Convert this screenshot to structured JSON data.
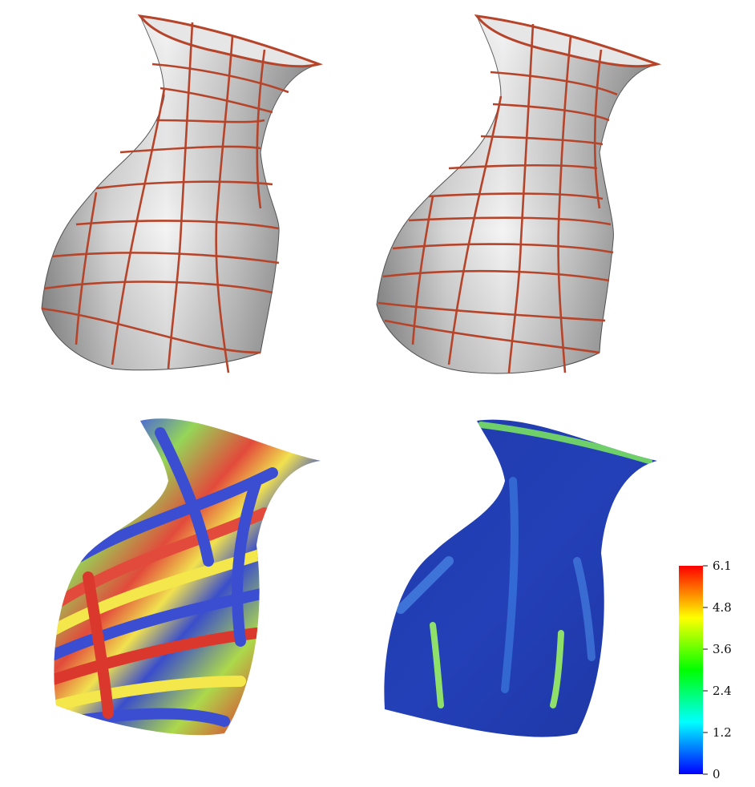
{
  "figure": {
    "panels": [
      {
        "id": "top-left",
        "kind": "shaded-mesh-with-curve-network"
      },
      {
        "id": "top-right",
        "kind": "shaded-mesh-with-curve-network"
      },
      {
        "id": "bottom-left",
        "kind": "color-mapped-error"
      },
      {
        "id": "bottom-right",
        "kind": "color-mapped-error"
      }
    ],
    "curve_color": "#b5442a",
    "shading_color": "#c8c8c8"
  },
  "colorbar": {
    "ticks": [
      "6.1",
      "4.8",
      "3.6",
      "2.4",
      "1.2",
      "0"
    ],
    "min": 0,
    "max": 6.1,
    "colors": [
      "#ff0000",
      "#ffff00",
      "#00ff00",
      "#00ffff",
      "#0000ff"
    ]
  }
}
